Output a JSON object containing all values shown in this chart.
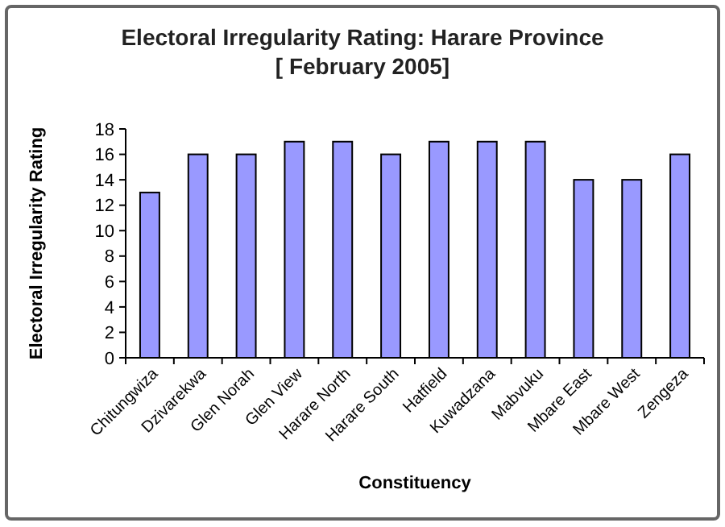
{
  "chart_data": {
    "type": "bar",
    "title": "Electoral Irregularity Rating: Harare Province",
    "subtitle": "[ February 2005]",
    "xlabel": "Constituency",
    "ylabel": "Electoral Irregularity Rating",
    "categories": [
      "Chitungwiza",
      "Dzivarekwa",
      "Glen Norah",
      "Glen View",
      "Harare North",
      "Harare South",
      "Hatfield",
      "Kuwadzana",
      "Mabvuku",
      "Mbare East",
      "Mbare West",
      "Zengeza"
    ],
    "values": [
      13,
      16,
      16,
      17,
      17,
      16,
      17,
      17,
      17,
      14,
      14,
      16
    ],
    "color": "#9999ff",
    "ylim": [
      0,
      18
    ],
    "yticks": [
      0,
      2,
      4,
      6,
      8,
      10,
      12,
      14,
      16,
      18
    ],
    "grid": false
  }
}
